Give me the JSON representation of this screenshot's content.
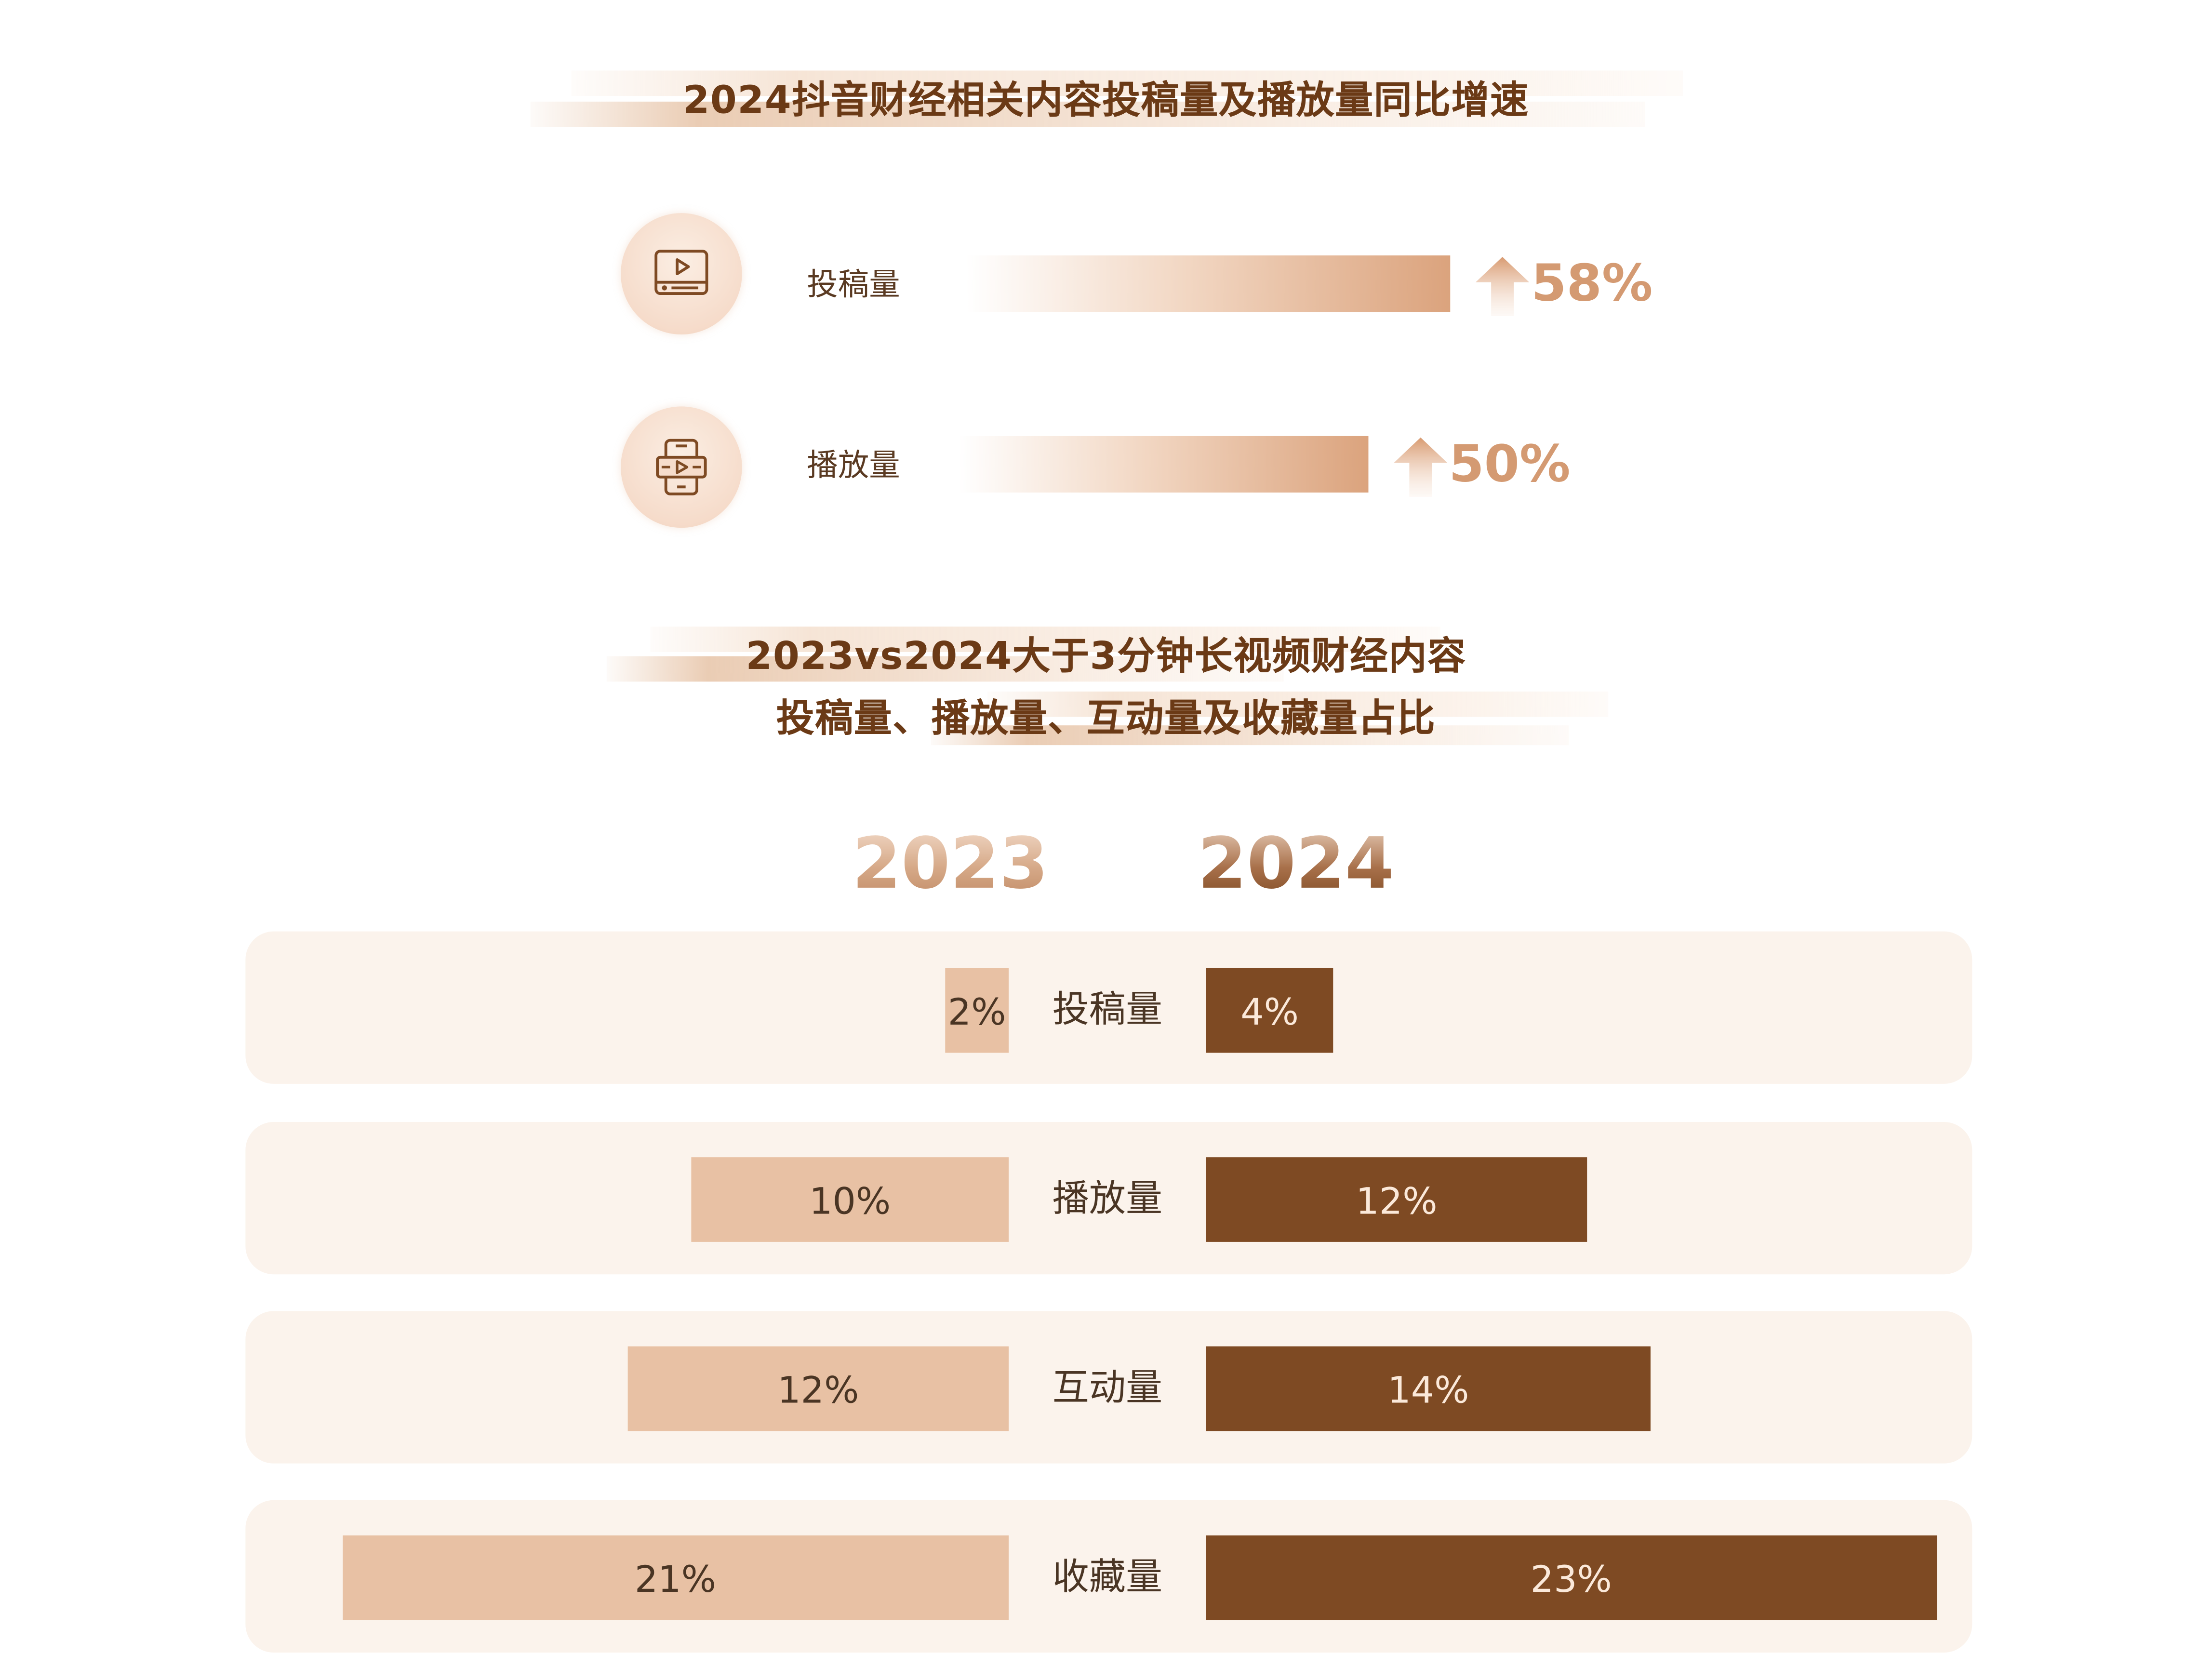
{
  "colors": {
    "title": "#6b3a16",
    "growth_accent": "#d49a72",
    "bar_2023": "#e8c1a4",
    "bar_2024": "#7e4a23",
    "band": "#fbf3ec"
  },
  "growth_section": {
    "title": "2024抖音财经相关内容投稿量及播放量同比增速",
    "items": [
      {
        "label": "投稿量",
        "icon": "video-screen-icon",
        "value": "58%"
      },
      {
        "label": "播放量",
        "icon": "phone-video-icon",
        "value": "50%"
      }
    ]
  },
  "comparison_section": {
    "title_line1": "2023vs2024大于3分钟长视频财经内容",
    "title_line2": "投稿量、播放量、互动量及收藏量占比",
    "years": [
      "2023",
      "2024"
    ]
  },
  "chart_data": [
    {
      "type": "bar",
      "title": "2024抖音财经相关内容投稿量及播放量同比增速",
      "categories": [
        "投稿量",
        "播放量"
      ],
      "values": [
        58,
        50
      ],
      "unit": "%"
    },
    {
      "type": "bar",
      "title": "2023vs2024大于3分钟长视频财经内容投稿量、播放量、互动量及收藏量占比",
      "categories": [
        "投稿量",
        "播放量",
        "互动量",
        "收藏量"
      ],
      "series": [
        {
          "name": "2023",
          "values": [
            2,
            10,
            12,
            21
          ],
          "labels": [
            "2%",
            "10%",
            "12%",
            "21%"
          ]
        },
        {
          "name": "2024",
          "values": [
            4,
            12,
            14,
            23
          ],
          "labels": [
            "4%",
            "12%",
            "14%",
            "23%"
          ]
        }
      ],
      "unit": "%"
    }
  ]
}
